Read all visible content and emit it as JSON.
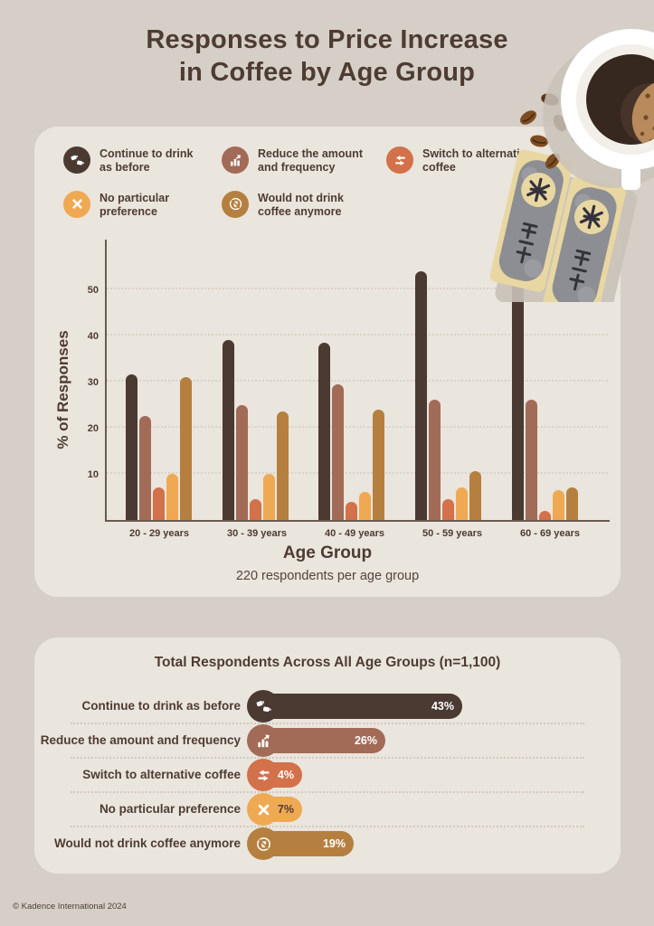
{
  "page": {
    "title": "Responses to Price Increase\nin Coffee by Age Group",
    "footer": "© Kadence International 2024"
  },
  "colors": {
    "page_bg": "#d5cfc7",
    "panel_bg": "#eae5dd",
    "text_dark": "#4e3c33",
    "axis": "#6b5a4e"
  },
  "legend": {
    "items": [
      {
        "icon": "coffee-cups-icon",
        "color": "#4a3a32",
        "label": "Continue to drink\nas before"
      },
      {
        "icon": "reduce-chart-icon",
        "color": "#a26b57",
        "label": "Reduce the amount\nand frequency"
      },
      {
        "icon": "swap-arrows-icon",
        "color": "#d2714a",
        "label": "Switch to alternative\ncoffee"
      },
      {
        "icon": "x-icon",
        "color": "#efa952",
        "label": "No particular\npreference"
      },
      {
        "icon": "no-coffee-icon",
        "color": "#b5803f",
        "label": "Would not drink\ncoffee anymore"
      }
    ]
  },
  "chart_data": {
    "type": "bar",
    "title": "",
    "xlabel": "Age Group",
    "x_note": "220 respondents per age group",
    "ylabel": "% of Responses",
    "ylim": [
      0,
      58
    ],
    "yticks": [
      10,
      20,
      30,
      40,
      50
    ],
    "grid": "dashed-horizontal",
    "legend_position": "top",
    "categories": [
      "20 - 29 years",
      "30 - 39 years",
      "40 - 49 years",
      "50 - 59 years",
      "60 - 69 years"
    ],
    "series": [
      {
        "name": "Continue to drink as before",
        "color": "#4a3a32",
        "values": [
          31.5,
          39,
          38.5,
          54,
          57
        ]
      },
      {
        "name": "Reduce the amount and frequency",
        "color": "#a26b57",
        "values": [
          22.5,
          25,
          29.5,
          26,
          26
        ]
      },
      {
        "name": "Switch to alternative coffee",
        "color": "#d2714a",
        "values": [
          7,
          4.5,
          4,
          4.5,
          2
        ]
      },
      {
        "name": "No particular preference",
        "color": "#efa952",
        "values": [
          10,
          10,
          6,
          7,
          6.5
        ]
      },
      {
        "name": "Would not drink coffee anymore",
        "color": "#b5803f",
        "values": [
          31,
          23.5,
          24,
          10.5,
          7
        ]
      }
    ]
  },
  "totals": {
    "title": "Total Respondents Across All Age Groups (n=1,100)",
    "rows": [
      {
        "label": "Continue to drink as before",
        "icon": "coffee-cups-icon",
        "color": "#4a3a32",
        "pct": 43,
        "value_label": "43%",
        "value_color": "#ffffff"
      },
      {
        "label": "Reduce the amount and frequency",
        "icon": "reduce-chart-icon",
        "color": "#a26b57",
        "pct": 26,
        "value_label": "26%",
        "value_color": "#ffffff"
      },
      {
        "label": "Switch to alternative coffee",
        "icon": "swap-arrows-icon",
        "color": "#d2714a",
        "pct": 4,
        "value_label": "4%",
        "value_color": "#ffffff"
      },
      {
        "label": "No particular preference",
        "icon": "x-icon",
        "color": "#efa952",
        "pct": 7,
        "value_label": "7%",
        "value_color": "#4e3c33"
      },
      {
        "label": "Would not drink coffee anymore",
        "icon": "no-coffee-icon",
        "color": "#b5803f",
        "pct": 19,
        "value_label": "19%",
        "value_color": "#ffffff"
      }
    ]
  }
}
